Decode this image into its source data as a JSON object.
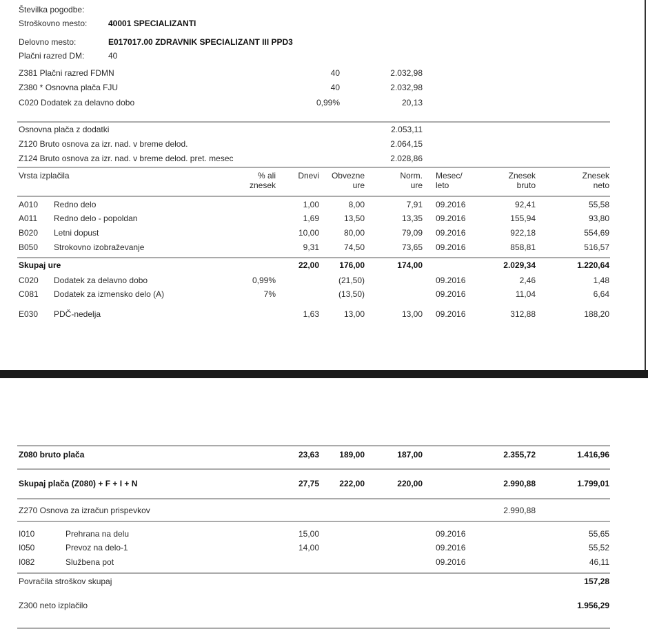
{
  "header": {
    "fields": [
      {
        "label": "Številka pogodbe:"
      },
      {
        "label": "Stroškovno mesto:",
        "value": "40001 SPECIALIZANTI"
      },
      {
        "label": "Delovno mesto:",
        "value": "E017017.00 ZDRAVNIK SPECIALIZANT III PPD3"
      },
      {
        "label": "Plačni razred DM:",
        "value": "40"
      }
    ]
  },
  "basis": [
    {
      "label": "Z381 Plačni razred FDMN",
      "qty": "40",
      "amount": "2.032,98"
    },
    {
      "label": "Z380 * Osnovna plača FJU",
      "qty": "40",
      "amount": "2.032,98"
    },
    {
      "label": "C020 Dodatek za delavno dobo",
      "qty": "0,99%",
      "amount": "20,13"
    }
  ],
  "summary": [
    {
      "label": "Osnovna plača z dodatki",
      "amount": "2.053,11"
    },
    {
      "label": "Z120 Bruto osnova za izr. nad. v breme delod.",
      "amount": "2.064,15"
    },
    {
      "label": "Z124 Bruto osnova za izr. nad. v breme delod. pret. mesec",
      "amount": "2.028,86"
    }
  ],
  "table": {
    "columns": [
      [
        "Vrsta izplačila"
      ],
      [
        "% ali",
        "znesek"
      ],
      [
        "Dnevi"
      ],
      [
        "Obvezne",
        "ure"
      ],
      [
        "Norm.",
        "ure"
      ],
      [
        "Mesec/",
        "leto"
      ],
      [
        "Znesek",
        "bruto"
      ],
      [
        "Znesek",
        "neto"
      ]
    ],
    "rows": [
      [
        "A010",
        "Redno delo",
        null,
        "1,00",
        "8,00",
        "7,91",
        "09.2016",
        "92,41",
        "55,58"
      ],
      [
        "A011",
        "Redno delo - popoldan",
        null,
        "1,69",
        "13,50",
        "13,35",
        "09.2016",
        "155,94",
        "93,80"
      ],
      [
        "B020",
        "Letni dopust",
        null,
        "10,00",
        "80,00",
        "79,09",
        "09.2016",
        "922,18",
        "554,69"
      ],
      [
        "B050",
        "Strokovno izobraževanje",
        null,
        "9,31",
        "74,50",
        "73,65",
        "09.2016",
        "858,81",
        "516,57"
      ],
      [
        "Skupaj ure",
        null,
        null,
        "22,00",
        "176,00",
        "174,00",
        null,
        "2.029,34",
        "1.220,64"
      ],
      [
        "C020",
        "Dodatek za delavno dobo",
        "0,99%",
        null,
        "(21,50)",
        null,
        "09.2016",
        "2,46",
        "1,48"
      ],
      [
        "C081",
        "Dodatek za izmensko delo (A)",
        "7%",
        null,
        "(13,50)",
        null,
        "09.2016",
        "11,04",
        "6,64"
      ],
      [
        "E030",
        "PDČ-nedelja",
        null,
        "1,63",
        "13,00",
        "13,00",
        "09.2016",
        "312,88",
        "188,20"
      ]
    ]
  },
  "totals": {
    "rows": [
      [
        "Z080 bruto plača",
        null,
        null,
        "23,63",
        "189,00",
        "187,00",
        null,
        "2.355,72",
        "1.416,96"
      ],
      [
        "Skupaj plača (Z080) + F + I + N",
        null,
        null,
        "27,75",
        "222,00",
        "220,00",
        null,
        "2.990,88",
        "1.799,01"
      ],
      [
        "Z270 Osnova za izračun prispevkov",
        null,
        null,
        null,
        null,
        null,
        null,
        "2.990,88",
        null
      ],
      [
        "I010",
        "Prehrana na delu",
        null,
        "15,00",
        null,
        null,
        "09.2016",
        null,
        "55,65"
      ],
      [
        "I050",
        "Prevoz na delo-1",
        null,
        "14,00",
        null,
        null,
        "09.2016",
        null,
        "55,52"
      ],
      [
        "I082",
        "Službena pot",
        null,
        null,
        null,
        null,
        "09.2016",
        null,
        "46,11"
      ],
      [
        "Povračila stroškov skupaj",
        null,
        null,
        null,
        null,
        null,
        null,
        null,
        "157,28"
      ],
      [
        "Z300 neto izplačilo",
        null,
        null,
        null,
        null,
        null,
        null,
        null,
        "1.956,29"
      ]
    ]
  }
}
